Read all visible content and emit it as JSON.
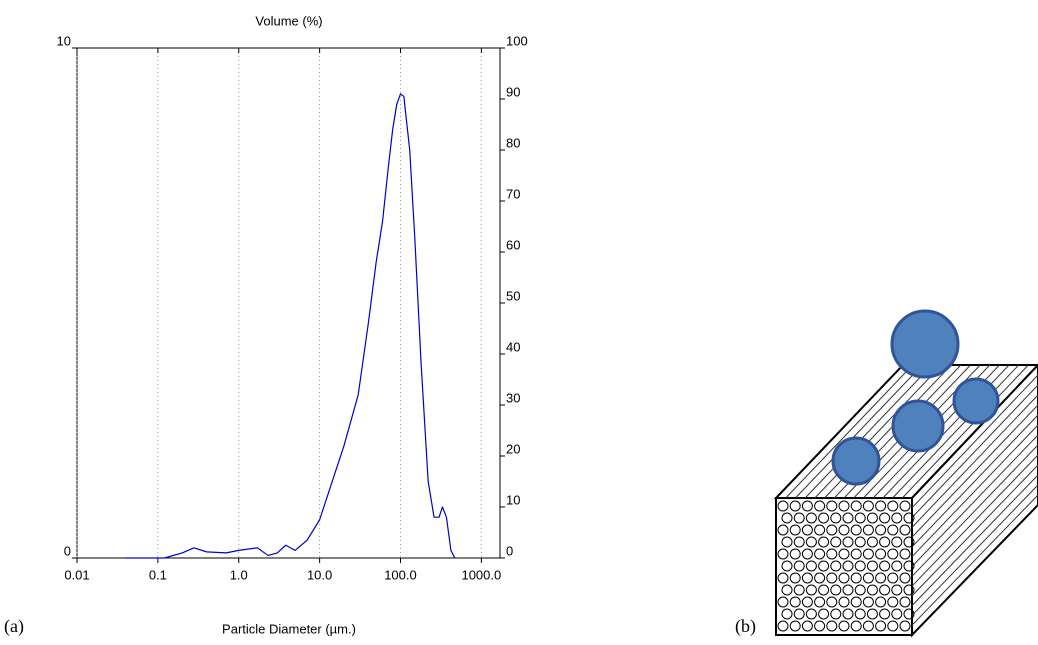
{
  "chart_data": {
    "type": "line",
    "title": "Volume (%)",
    "x_label": "Particle Diameter (µm.)",
    "x": [
      0.04,
      0.07,
      0.12,
      0.2,
      0.28,
      0.4,
      0.7,
      1.0,
      1.7,
      2.3,
      3,
      3.8,
      5,
      7,
      10,
      15,
      20,
      30,
      40,
      50,
      60,
      70,
      80,
      90,
      100,
      110,
      130,
      150,
      180,
      220,
      260,
      300,
      330,
      370,
      420,
      470
    ],
    "values": [
      0,
      0,
      0,
      0.1,
      0.2,
      0.12,
      0.1,
      0.15,
      0.2,
      0.05,
      0.1,
      0.25,
      0.15,
      0.35,
      0.75,
      1.6,
      2.2,
      3.2,
      4.6,
      5.8,
      6.6,
      7.6,
      8.4,
      8.9,
      9.1,
      9.05,
      8.0,
      6.3,
      3.8,
      1.5,
      0.8,
      0.8,
      1.0,
      0.8,
      0.15,
      0
    ],
    "color": "#0000cc",
    "log_x": true,
    "xlim": [
      0.01,
      1700
    ],
    "xticks": [
      0.01,
      0.1,
      {
        "value": 1,
        "label": "1.0"
      },
      {
        "value": 10,
        "label": "10.0"
      },
      {
        "value": 100,
        "label": "100.0"
      },
      {
        "value": 1000,
        "label": "1000.0"
      }
    ],
    "ylim": [
      0,
      10
    ],
    "yticks": [
      0,
      10
    ],
    "y2lim": [
      0,
      100
    ],
    "y2ticks": [
      0,
      10,
      20,
      30,
      40,
      50,
      60,
      70,
      80,
      90,
      100
    ],
    "grid": true
  },
  "panel_labels": {
    "a": "(a)",
    "b": "(b)"
  }
}
